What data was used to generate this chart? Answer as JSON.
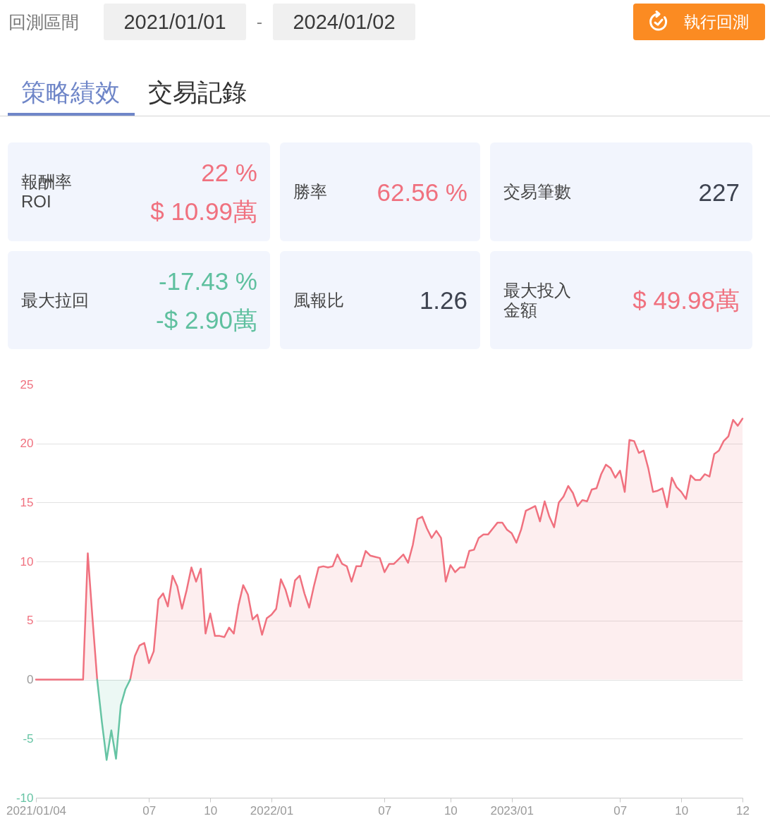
{
  "chart_data": [
    {
      "type": "other",
      "annotations": [
        "回測區間",
        "2021/01/01",
        "-",
        "2024/01/02",
        "執行回測",
        "策略績效",
        "交易記錄",
        "報酬率",
        "ROI",
        "22 %",
        "$ 10.99萬",
        "勝率",
        "62.56 %",
        "交易筆數",
        "227",
        "最大拉回",
        "-17.43 %",
        "-$ 2.90萬",
        "風報比",
        "1.26",
        "最大投入金額",
        "$ 49.98萬"
      ]
    },
    {
      "type": "area",
      "categories": [
        "2021/01/04",
        null,
        null,
        null,
        null,
        null,
        null,
        null,
        null,
        null,
        null,
        null,
        null,
        null,
        null,
        null,
        null,
        null,
        null,
        null,
        null,
        null,
        null,
        null,
        "07",
        null,
        null,
        null,
        null,
        null,
        null,
        null,
        null,
        null,
        null,
        null,
        null,
        "10",
        null,
        null,
        null,
        null,
        null,
        null,
        null,
        null,
        null,
        null,
        null,
        null,
        "2022/01",
        null,
        null,
        null,
        null,
        null,
        null,
        null,
        null,
        null,
        null,
        null,
        null,
        null,
        null,
        null,
        null,
        null,
        null,
        null,
        null,
        null,
        null,
        null,
        "07",
        null,
        null,
        null,
        null,
        null,
        null,
        null,
        null,
        null,
        null,
        null,
        null,
        null,
        "10",
        null,
        null,
        null,
        null,
        null,
        null,
        null,
        null,
        null,
        null,
        null,
        null,
        "2023/01",
        null,
        null,
        null,
        null,
        null,
        null,
        null,
        null,
        null,
        null,
        null,
        null,
        null,
        null,
        null,
        null,
        null,
        null,
        null,
        null,
        null,
        null,
        "07",
        null,
        null,
        null,
        null,
        null,
        null,
        null,
        null,
        null,
        null,
        null,
        null,
        "10",
        null,
        null,
        null,
        null,
        null,
        null,
        null,
        null,
        null,
        null,
        null,
        null,
        "12"
      ],
      "series": [
        {
          "color": "#f0717f",
          "values": [
            0,
            0,
            0,
            0,
            0,
            0,
            0,
            0,
            0,
            0,
            0,
            10.7,
            5.2,
            0,
            null,
            null,
            null,
            null,
            null,
            null,
            0,
            2.0,
            2.9,
            3.1,
            1.4,
            2.4,
            6.8,
            7.3,
            6.2,
            8.8,
            7.9,
            6.0,
            7.6,
            9.5,
            8.3,
            9.4,
            3.9,
            5.6,
            3.7,
            3.7,
            3.6,
            4.4,
            3.9,
            6.3,
            8.0,
            7.2,
            5.1,
            5.5,
            3.8,
            5.2,
            5.5,
            6.0,
            8.5,
            7.6,
            6.2,
            8.4,
            8.8,
            7.3,
            6.1,
            7.9,
            9.5,
            9.6,
            9.5,
            9.6,
            10.6,
            9.8,
            9.6,
            8.3,
            9.6,
            9.6,
            10.9,
            10.5,
            10.4,
            10.3,
            9.1,
            9.8,
            9.8,
            10.2,
            10.6,
            9.9,
            11.4,
            13.6,
            13.8,
            12.8,
            12.0,
            12.6,
            12.0,
            8.3,
            9.7,
            9.1,
            9.5,
            9.5,
            10.9,
            11.0,
            12.0,
            12.3,
            12.3,
            12.8,
            13.3,
            13.3,
            12.7,
            12.4,
            11.6,
            12.7,
            14.3,
            14.5,
            14.7,
            13.4,
            15.1,
            13.8,
            12.9,
            15.0,
            15.5,
            16.4,
            15.8,
            14.7,
            15.2,
            15.1,
            16.1,
            16.2,
            17.4,
            18.2,
            17.9,
            17.1,
            17.7,
            15.9,
            20.3,
            20.2,
            19.2,
            19.4,
            17.9,
            15.9,
            16.0,
            16.2,
            14.6,
            17.1,
            16.3,
            15.9,
            15.3,
            17.3,
            16.9,
            16.9,
            17.4,
            17.2,
            19.1,
            19.4,
            20.2,
            20.6,
            22.0,
            21.5,
            22.1
          ]
        },
        {
          "color": "#66c4a4",
          "values": [
            null,
            null,
            null,
            null,
            null,
            null,
            null,
            null,
            null,
            null,
            null,
            null,
            null,
            0,
            -3.6,
            -6.8,
            -4.3,
            -6.7,
            -2.2,
            -0.8,
            0,
            null,
            null,
            null,
            null,
            null,
            null,
            null,
            null,
            null,
            null,
            null,
            null,
            null,
            null,
            null,
            null,
            null,
            null,
            null,
            null,
            null,
            null,
            null,
            null,
            null,
            null,
            null,
            null,
            null,
            null,
            null,
            null,
            null,
            null,
            null,
            null,
            null,
            null,
            null,
            null,
            null,
            null,
            null,
            null,
            null,
            null,
            null,
            null,
            null,
            null,
            null,
            null,
            null,
            null,
            null,
            null,
            null,
            null,
            null,
            null,
            null,
            null,
            null,
            null,
            null,
            null,
            null,
            null,
            null,
            null,
            null,
            null,
            null,
            null,
            null,
            null,
            null,
            null,
            null,
            null,
            null,
            null,
            null,
            null,
            null,
            null,
            null,
            null,
            null,
            null,
            null,
            null,
            null,
            null,
            null,
            null,
            null,
            null,
            null,
            null,
            null,
            null,
            null,
            null,
            null,
            null,
            null,
            null,
            null,
            null,
            null,
            null,
            null,
            null,
            null,
            null,
            null,
            null,
            null,
            null,
            null,
            null,
            null,
            null,
            null,
            null,
            null,
            null,
            null,
            null
          ]
        }
      ],
      "ylim": [
        -10,
        25
      ],
      "yticks": [
        -10,
        -5,
        0,
        5,
        10,
        15,
        20,
        25
      ],
      "grid": "y"
    }
  ]
}
